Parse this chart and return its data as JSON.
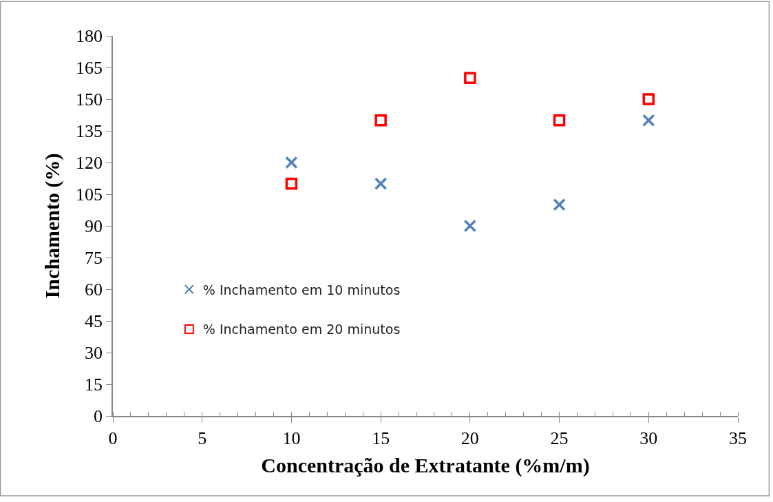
{
  "chart_data": {
    "type": "scatter",
    "xlabel": "Concentração de Extratante (%m/m)",
    "ylabel": "Inchamento (%)",
    "x": [
      10,
      15,
      20,
      25,
      30
    ],
    "series": [
      {
        "name": "% Inchamento em 10 minutos",
        "color": "#4f81bd",
        "marker": "cross",
        "values": [
          120,
          110,
          90,
          100,
          140
        ]
      },
      {
        "name": "% Inchamento em 20 minutos",
        "color": "#ff0000",
        "marker": "square",
        "values": [
          110,
          140,
          160,
          140,
          150
        ]
      }
    ],
    "xlim": [
      0,
      35
    ],
    "xticks": [
      0,
      5,
      10,
      15,
      20,
      25,
      30,
      35
    ],
    "ylim": [
      0,
      180
    ],
    "yticks": [
      0,
      15,
      30,
      45,
      60,
      75,
      90,
      105,
      120,
      135,
      150,
      165,
      180
    ],
    "legend": "left"
  }
}
